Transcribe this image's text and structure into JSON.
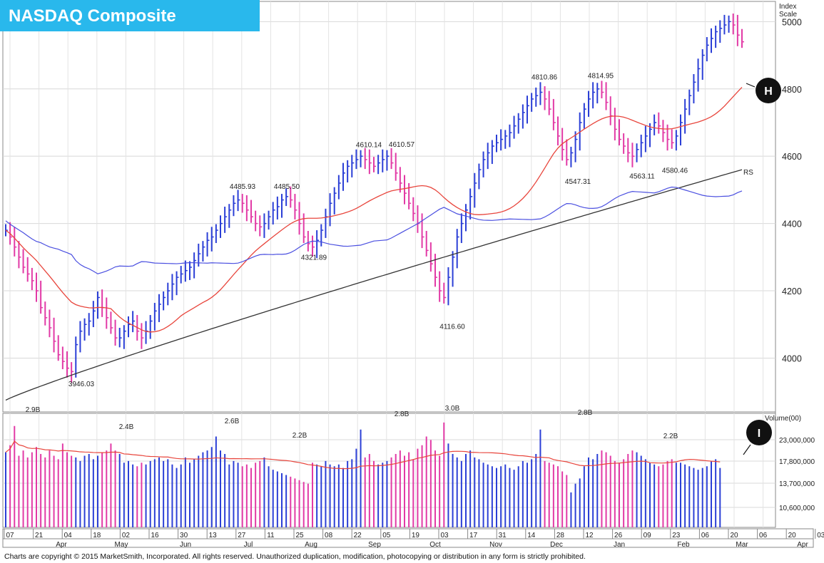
{
  "title": "NASDAQ Composite",
  "scale_label_line1": "Index",
  "scale_label_line2": "Scale",
  "volume_axis_label": "Volume(00)",
  "copyright": "Charts are copyright © 2015 MarketSmith, Incorporated. All rights reserved. Unauthorized duplication, modification, photocopying or distribution in any form is strictly prohibited.",
  "markers": {
    "h": "H",
    "i": "I"
  },
  "rs_label": "RS",
  "colors": {
    "up": "#2b3fd6",
    "down": "#e23aa6",
    "ma_short": "#e8453c",
    "ma_long": "#333333",
    "rs": "#4a4fe0",
    "title_bg": "#29b8ec"
  },
  "chart_data": {
    "type": "bar",
    "price_axis": {
      "ticks": [
        4000,
        4200,
        4400,
        4600,
        4800,
        5000
      ],
      "ylim": [
        3840,
        5060
      ]
    },
    "volume_axis": {
      "ticks": [
        "23,000,000",
        "17,800,000",
        "13,700,000",
        "10,600,000"
      ]
    },
    "x_ticks": [
      "07",
      "21",
      "04",
      "18",
      "02",
      "16",
      "30",
      "13",
      "27",
      "11",
      "25",
      "08",
      "22",
      "05",
      "19",
      "03",
      "17",
      "31",
      "14",
      "28",
      "12",
      "26",
      "09",
      "23",
      "06",
      "20",
      "06",
      "20",
      "03"
    ],
    "month_labels": [
      "Apr",
      "May",
      "Jun",
      "Jul",
      "Aug",
      "Sep",
      "Oct",
      "Nov",
      "Dec",
      "Jan",
      "Feb",
      "Mar",
      "Apr"
    ],
    "price_annotations": [
      {
        "text": "3946.03",
        "value": 3946.03
      },
      {
        "text": "4485.93",
        "value": 4485.93
      },
      {
        "text": "4485.50",
        "value": 4485.5
      },
      {
        "text": "4321.89",
        "value": 4321.89
      },
      {
        "text": "4610.14",
        "value": 4610.14
      },
      {
        "text": "4610.57",
        "value": 4610.57
      },
      {
        "text": "4116.60",
        "value": 4116.6
      },
      {
        "text": "4810.86",
        "value": 4810.86
      },
      {
        "text": "4814.95",
        "value": 4814.95
      },
      {
        "text": "4547.31",
        "value": 4547.31
      },
      {
        "text": "4563.11",
        "value": 4563.11
      },
      {
        "text": "4580.46",
        "value": 4580.46
      }
    ],
    "volume_annotations": [
      "2.9B",
      "2.4B",
      "2.6B",
      "2.2B",
      "2.8B",
      "3.0B",
      "2.8B",
      "2.2B"
    ],
    "close_series": [
      4380,
      4360,
      4330,
      4300,
      4270,
      4250,
      4230,
      4200,
      4150,
      4120,
      4090,
      4050,
      4010,
      3990,
      3970,
      3960,
      4040,
      4080,
      4100,
      4110,
      4140,
      4180,
      4150,
      4120,
      4090,
      4060,
      4060,
      4080,
      4100,
      4110,
      4080,
      4060,
      4080,
      4110,
      4140,
      4160,
      4180,
      4200,
      4220,
      4240,
      4250,
      4260,
      4270,
      4290,
      4310,
      4330,
      4350,
      4360,
      4380,
      4400,
      4420,
      4440,
      4460,
      4470,
      4460,
      4440,
      4420,
      4400,
      4390,
      4400,
      4420,
      4440,
      4450,
      4470,
      4480,
      4470,
      4440,
      4400,
      4360,
      4340,
      4330,
      4350,
      4380,
      4420,
      4460,
      4490,
      4520,
      4550,
      4570,
      4580,
      4590,
      4600,
      4590,
      4580,
      4570,
      4580,
      4590,
      4600,
      4580,
      4550,
      4520,
      4490,
      4460,
      4430,
      4400,
      4360,
      4320,
      4280,
      4240,
      4200,
      4180,
      4240,
      4300,
      4360,
      4400,
      4440,
      4480,
      4520,
      4560,
      4590,
      4610,
      4630,
      4640,
      4650,
      4660,
      4670,
      4690,
      4710,
      4730,
      4750,
      4770,
      4780,
      4790,
      4770,
      4740,
      4700,
      4660,
      4620,
      4590,
      4610,
      4650,
      4700,
      4740,
      4770,
      4790,
      4800,
      4790,
      4760,
      4720,
      4680,
      4650,
      4630,
      4610,
      4600,
      4620,
      4640,
      4660,
      4680,
      4700,
      4690,
      4670,
      4650,
      4640,
      4660,
      4700,
      4740,
      4780,
      4820,
      4860,
      4900,
      4930,
      4950,
      4970,
      4980,
      4990,
      5000,
      4990,
      4960,
      4940
    ],
    "volume_series": [
      2150,
      2350,
      2900,
      2050,
      2200,
      2000,
      2150,
      2300,
      2100,
      2000,
      2200,
      2050,
      1950,
      2400,
      2150,
      2050,
      2000,
      1900,
      2050,
      2100,
      1950,
      2050,
      2150,
      2200,
      2400,
      2200,
      2100,
      1850,
      1900,
      1800,
      1750,
      1850,
      1800,
      1900,
      1950,
      2000,
      1900,
      1950,
      1800,
      1700,
      1800,
      2000,
      1850,
      1950,
      2050,
      2150,
      2200,
      2300,
      2600,
      2200,
      2100,
      1800,
      1900,
      1850,
      1750,
      1800,
      1700,
      1850,
      1900,
      2000,
      1750,
      1650,
      1600,
      1550,
      1500,
      1450,
      1400,
      1350,
      1300,
      1250,
      1850,
      1800,
      1750,
      1900,
      1800,
      1750,
      1800,
      1700,
      1900,
      1950,
      2250,
      2800,
      2000,
      2100,
      1900,
      1800,
      1850,
      1900,
      2000,
      2100,
      2200,
      2050,
      2150,
      1950,
      2250,
      2350,
      2600,
      2500,
      2200,
      2050,
      3000,
      2400,
      2100,
      2000,
      1900,
      2100,
      2200,
      2000,
      1950,
      1850,
      1800,
      1750,
      1700,
      1750,
      1800,
      1700,
      1650,
      1750,
      1900,
      1850,
      1950,
      2100,
      2800,
      1900,
      1850,
      1800,
      1750,
      1600,
      1500,
      1000,
      1250,
      1400,
      1750,
      2000,
      1950,
      2100,
      2200,
      2150,
      2050,
      1900,
      1850,
      1950,
      2100,
      2200,
      2150,
      2050,
      1950,
      1850,
      1800,
      1750,
      1800,
      1900,
      1950,
      1850,
      1850,
      1800,
      1750,
      1700,
      1650,
      1700,
      1750,
      1900,
      1950,
      1700
    ]
  }
}
